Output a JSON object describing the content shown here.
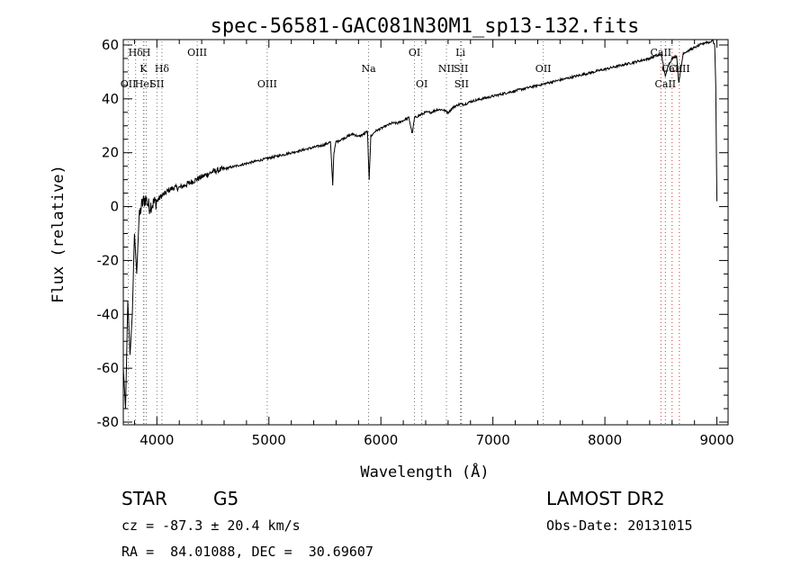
{
  "chart_data": {
    "type": "line",
    "title": "spec-56581-GAC081N30M1_sp13-132.fits",
    "xlabel": "Wavelength (Å)",
    "ylabel": "Flux (relative)",
    "xlim": [
      3700,
      9100
    ],
    "ylim": [
      -81,
      62
    ],
    "xticks": [
      4000,
      5000,
      6000,
      7000,
      8000,
      9000
    ],
    "yticks": [
      -80,
      -60,
      -40,
      -20,
      0,
      20,
      40,
      60
    ],
    "grid": false,
    "series": [
      {
        "x": [
          3700,
          3720,
          3740,
          3760,
          3780,
          3800,
          3820,
          3840,
          3860,
          3880,
          3900,
          3930,
          3960,
          4000,
          4040,
          4080,
          4100,
          4150,
          4200,
          4250,
          4300,
          4350,
          4400,
          4450,
          4500,
          4600,
          4700,
          4800,
          4900,
          5000,
          5100,
          5200,
          5300,
          5400,
          5500,
          5550,
          5570,
          5580,
          5600,
          5650,
          5700,
          5750,
          5800,
          5850,
          5880,
          5895,
          5910,
          5950,
          6000,
          6050,
          6100,
          6150,
          6200,
          6250,
          6280,
          6300,
          6350,
          6400,
          6450,
          6500,
          6550,
          6600,
          6650,
          6700,
          6750,
          6800,
          6900,
          7000,
          7100,
          7200,
          7300,
          7400,
          7500,
          7600,
          7700,
          7800,
          7900,
          8000,
          8100,
          8200,
          8300,
          8400,
          8450,
          8480,
          8500,
          8520,
          8540,
          8560,
          8600,
          8640,
          8660,
          8700,
          8750,
          8800,
          8850,
          8900,
          8940,
          8960,
          8980,
          8990,
          9000
        ],
        "y": [
          -60,
          -75,
          -35,
          -55,
          -40,
          -10,
          -25,
          -5,
          0,
          2,
          3,
          0,
          1,
          2,
          4,
          5,
          6,
          7,
          7,
          8,
          9,
          10,
          11,
          12,
          13,
          14,
          15,
          16,
          17,
          18,
          19,
          20,
          21,
          22,
          23,
          24,
          8,
          20,
          24,
          25,
          26,
          27,
          26,
          27,
          28,
          10,
          26,
          28,
          29,
          30,
          31,
          31,
          32,
          33,
          27,
          33,
          34,
          35,
          35,
          36,
          36,
          35,
          37,
          38,
          38,
          39,
          40,
          41,
          42,
          43,
          44,
          45,
          46,
          47,
          48,
          49,
          50,
          51,
          52,
          53,
          54,
          55,
          56,
          56,
          57,
          53,
          48,
          52,
          55,
          56,
          46,
          57,
          58,
          59,
          60,
          61,
          61,
          62,
          60,
          45,
          2
        ]
      }
    ],
    "line_markers": [
      {
        "label": "Hδ",
        "x": 3810,
        "row": 0
      },
      {
        "label": "H",
        "x": 3905,
        "row": 0
      },
      {
        "label": "K",
        "x": 3880,
        "row": 1
      },
      {
        "label": "Hδ",
        "x": 4045,
        "row": 1
      },
      {
        "label": "OII",
        "x": 3745,
        "row": 2
      },
      {
        "label": "HeI",
        "x": 3885,
        "row": 2
      },
      {
        "label": "SII",
        "x": 4000,
        "row": 2
      },
      {
        "label": "OIII",
        "x": 4360,
        "row": 0
      },
      {
        "label": "OIII",
        "x": 4985,
        "row": 2
      },
      {
        "label": "Na",
        "x": 5890,
        "row": 1
      },
      {
        "label": "OI",
        "x": 6300,
        "row": 0
      },
      {
        "label": "OI",
        "x": 6365,
        "row": 2
      },
      {
        "label": "Li",
        "x": 6710,
        "row": 0
      },
      {
        "label": "NII",
        "x": 6585,
        "row": 1
      },
      {
        "label": "SII",
        "x": 6715,
        "row": 1
      },
      {
        "label": "SII",
        "x": 6720,
        "row": 2
      },
      {
        "label": "OII",
        "x": 7450,
        "row": 1
      },
      {
        "label": "CaII",
        "x": 8500,
        "row": 0
      },
      {
        "label": "CaII",
        "x": 8600,
        "row": 1
      },
      {
        "label": "CaII",
        "x": 8540,
        "row": 2
      },
      {
        "label": "CaII",
        "x": 8665,
        "row": 1
      }
    ]
  },
  "info": {
    "object_class": "STAR",
    "subclass": "G5",
    "survey": "LAMOST DR2",
    "cz": "cz = -87.3 ± 20.4 km/s",
    "obs_date": "Obs-Date: 20131015",
    "coords": "RA =  84.01088, DEC =  30.69607"
  }
}
